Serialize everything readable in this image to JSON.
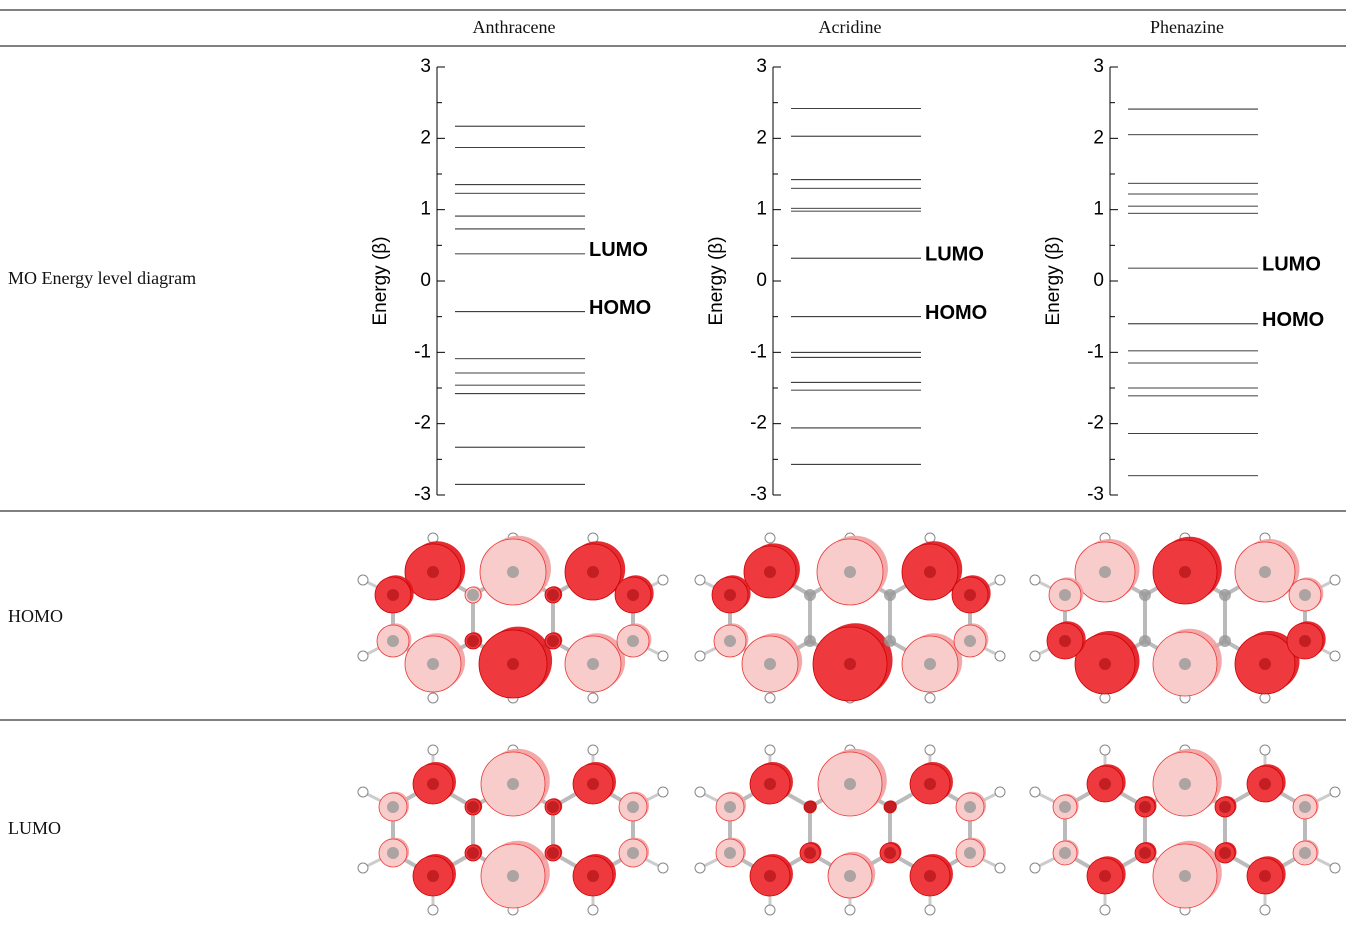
{
  "table": {
    "header": [
      "Anthracene",
      "Acridine",
      "Phenazine"
    ],
    "rows": [
      [
        "MO Energy level diagram"
      ],
      [
        "HOMO"
      ],
      [
        "LUMO"
      ]
    ]
  },
  "chart_data": [
    {
      "type": "levels",
      "ylabel": "Energy (β)",
      "ylim": [
        -3,
        3
      ],
      "yticks": [
        -3,
        -2,
        -1,
        0,
        1,
        2,
        3
      ],
      "color": "#000000",
      "values": [
        2.17,
        1.87,
        1.35,
        1.23,
        0.91,
        0.73,
        0.38,
        -0.43,
        -1.09,
        -1.29,
        -1.46,
        -1.58,
        -2.33,
        -2.85
      ],
      "annotations": [
        {
          "text": "LUMO",
          "value": 0.38
        },
        {
          "text": "HOMO",
          "value": -0.43
        }
      ]
    },
    {
      "type": "levels",
      "ylabel": "Energy (β)",
      "ylim": [
        -3,
        3
      ],
      "yticks": [
        -3,
        -2,
        -1,
        0,
        1,
        2,
        3
      ],
      "color": "#000000",
      "values": [
        2.42,
        2.03,
        1.42,
        1.3,
        1.02,
        0.98,
        0.32,
        -0.5,
        -1,
        -1.07,
        -1.42,
        -1.53,
        -2.06,
        -2.57
      ],
      "annotations": [
        {
          "text": "LUMO",
          "value": 0.32
        },
        {
          "text": "HOMO",
          "value": -0.5
        }
      ]
    },
    {
      "type": "levels",
      "ylabel": "Energy (β)",
      "ylim": [
        -3,
        3
      ],
      "yticks": [
        -3,
        -2,
        -1,
        0,
        1,
        2,
        3
      ],
      "color": "#000000",
      "values": [
        2.41,
        2.05,
        1.37,
        1.22,
        1.05,
        0.95,
        0.18,
        -0.6,
        -0.98,
        -1.15,
        -1.5,
        -1.61,
        -2.14,
        -2.73
      ],
      "annotations": [
        {
          "text": "LUMO",
          "value": 0.18
        },
        {
          "text": "HOMO",
          "value": -0.6
        }
      ]
    }
  ]
}
